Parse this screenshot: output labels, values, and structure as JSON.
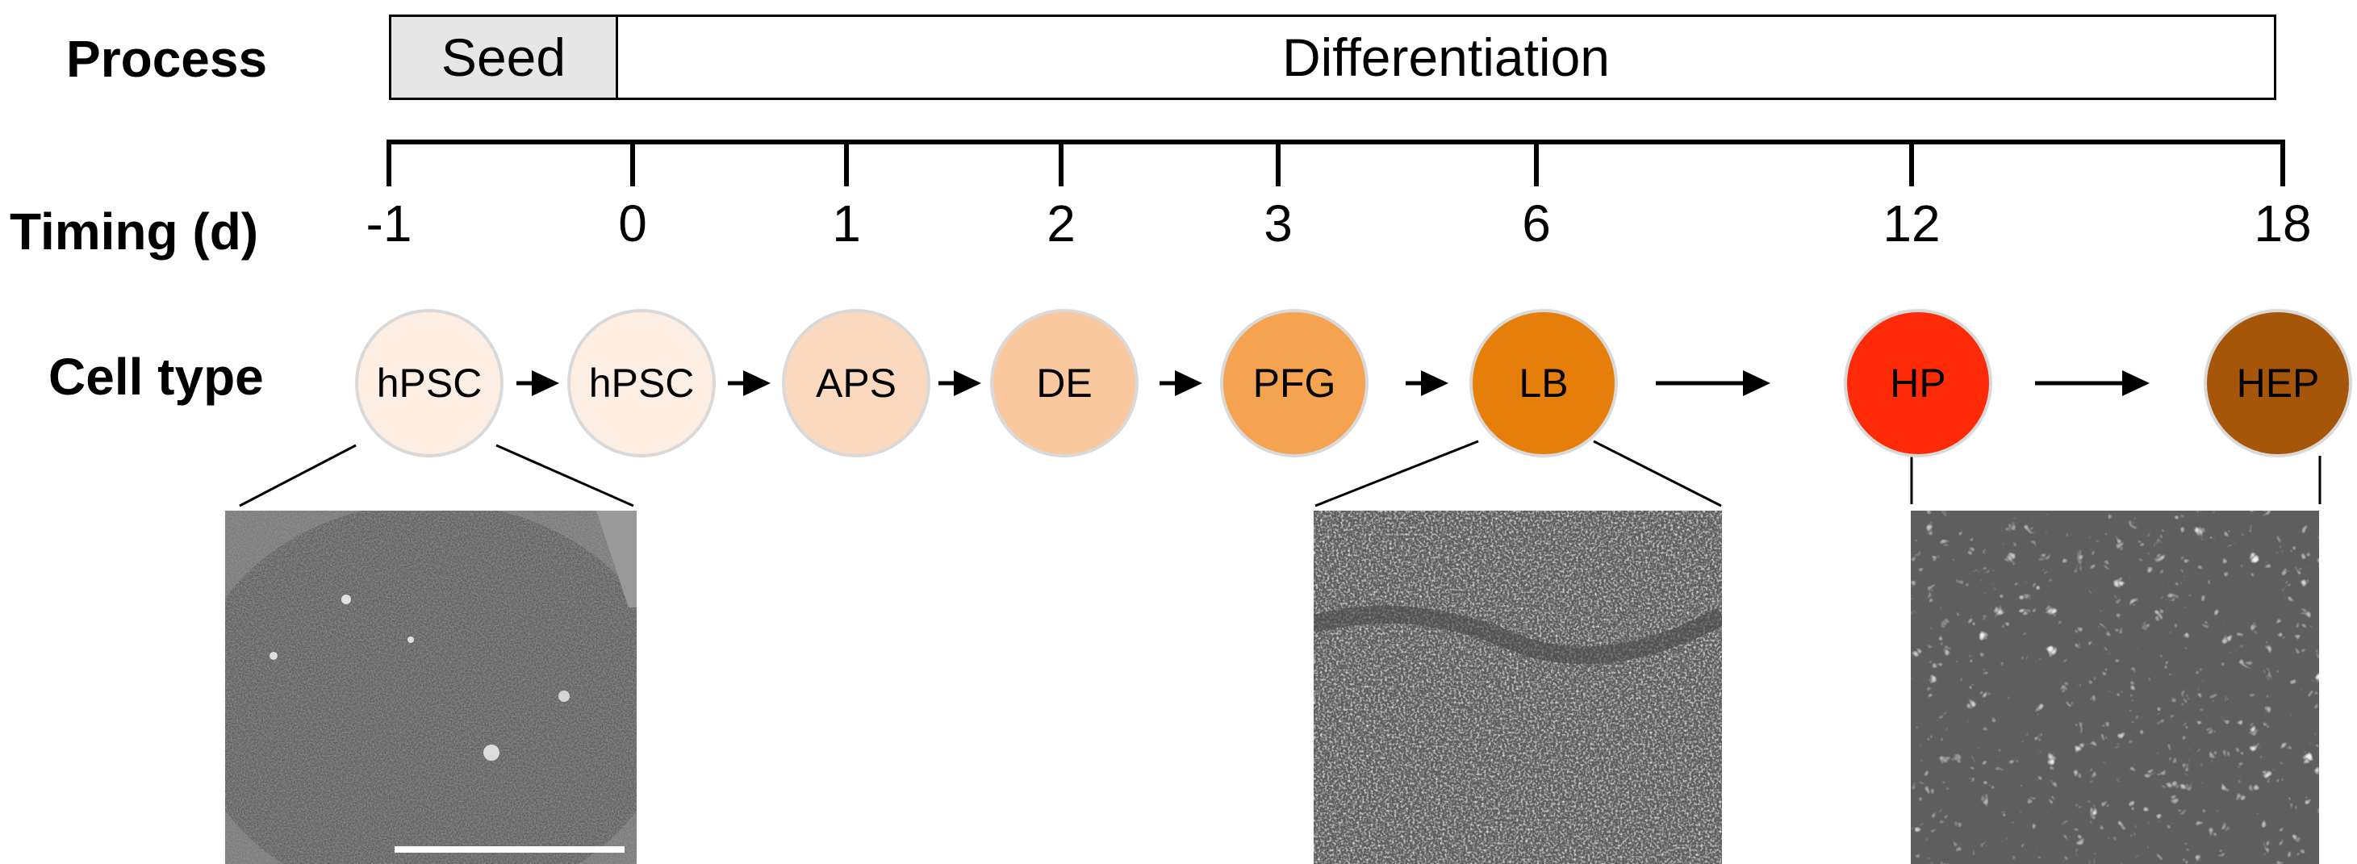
{
  "labels": {
    "process": "Process",
    "timing": "Timing (d)",
    "cell_type": "Cell type"
  },
  "process": {
    "seed": "Seed",
    "differentiation": "Differentiation"
  },
  "timeline": {
    "ticks": [
      "-1",
      "0",
      "1",
      "2",
      "3",
      "6",
      "12",
      "18"
    ]
  },
  "cells": [
    {
      "label": "hPSC",
      "color": "#fdeee3"
    },
    {
      "label": "hPSC",
      "color": "#fdeee3"
    },
    {
      "label": "APS",
      "color": "#fbd9bf"
    },
    {
      "label": "DE",
      "color": "#f9c89f"
    },
    {
      "label": "PFG",
      "color": "#f5a351"
    },
    {
      "label": "LB",
      "color": "#e67e0a"
    },
    {
      "label": "HP",
      "color": "#fe2a08"
    },
    {
      "label": "HEP",
      "color": "#a55609"
    }
  ],
  "micrographs": [
    {
      "name": "hpsc-micrograph",
      "shows_scale_bar": true
    },
    {
      "name": "lb-micrograph",
      "shows_scale_bar": false
    },
    {
      "name": "hep-micrograph",
      "shows_scale_bar": false
    }
  ],
  "colors": {
    "seed_fill": "#e6e6e6",
    "circle_border": "#d9d9d9",
    "micrograph_gray": "#707070"
  }
}
